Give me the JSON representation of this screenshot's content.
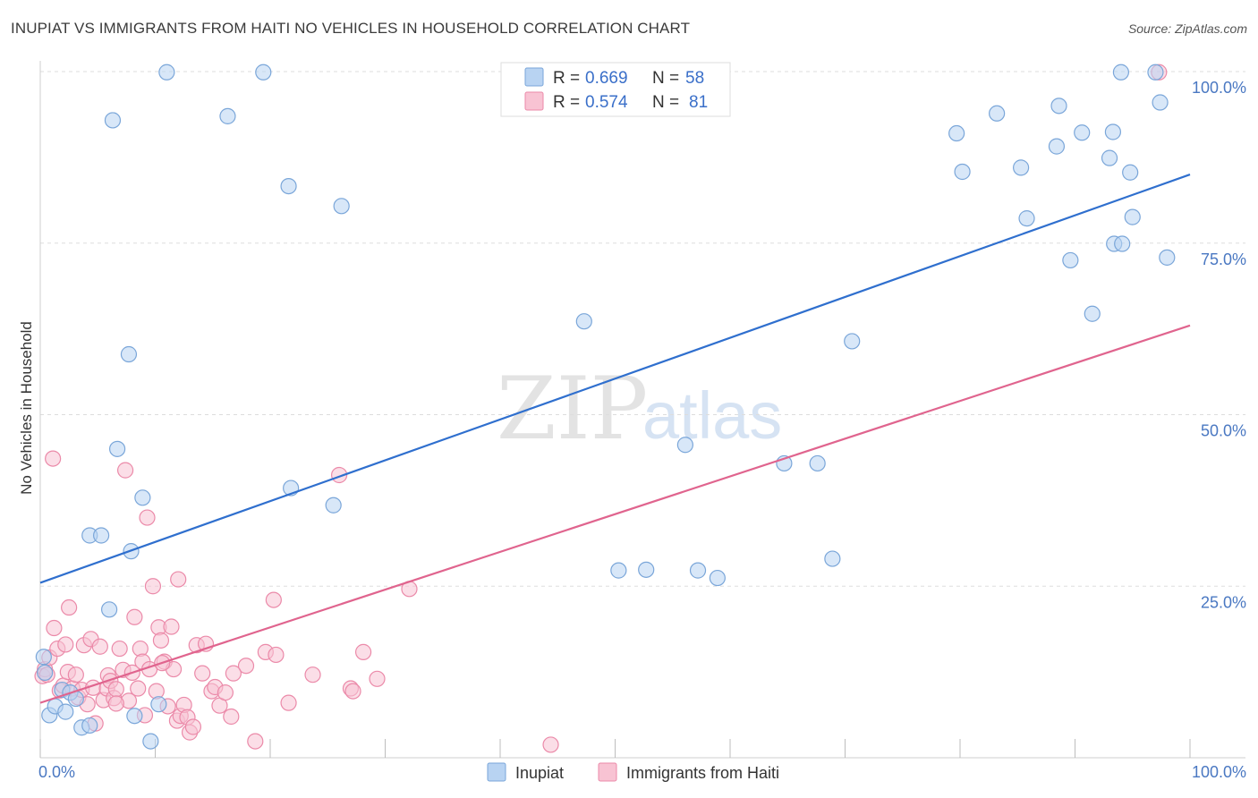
{
  "title": "INUPIAT VS IMMIGRANTS FROM HAITI NO VEHICLES IN HOUSEHOLD CORRELATION CHART",
  "source": "Source: ZipAtlas.com",
  "watermark": {
    "zip": "ZIP",
    "atlas": "atlas"
  },
  "colors": {
    "blue_fill": "#b8d3f2",
    "blue_stroke": "#7aa6d9",
    "blue_line": "#2f6fce",
    "pink_fill": "#f8c3d3",
    "pink_stroke": "#eb8aa9",
    "pink_line": "#e0648e",
    "tick_text": "#4a78c2",
    "grid": "#dddddd"
  },
  "chart_data": {
    "type": "scatter",
    "title": "INUPIAT VS IMMIGRANTS FROM HAITI NO VEHICLES IN HOUSEHOLD CORRELATION CHART",
    "xlabel": "",
    "ylabel": "No Vehicles in Household",
    "xlim": [
      0,
      100
    ],
    "ylim": [
      0,
      100
    ],
    "x_tick_labels": {
      "min": "0.0%",
      "max": "100.0%"
    },
    "y_tick_labels": [
      "25.0%",
      "50.0%",
      "75.0%",
      "100.0%"
    ],
    "y_tick_values": [
      25,
      50,
      75,
      100
    ],
    "legend_stats": [
      {
        "r_label": "R =",
        "r_value": "0.669",
        "n_label": "N =",
        "n_value": "58"
      },
      {
        "r_label": "R =",
        "r_value": "0.574",
        "n_label": "N =",
        "n_value": "81"
      }
    ],
    "series": [
      {
        "name": "Inupiat",
        "trend": {
          "x1": 0,
          "y1": 25.5,
          "x2": 100,
          "y2": 85
        },
        "points": [
          [
            0.3,
            14.7
          ],
          [
            0.4,
            12.4
          ],
          [
            0.8,
            6.2
          ],
          [
            1.3,
            7.5
          ],
          [
            1.9,
            9.9
          ],
          [
            2.2,
            6.7
          ],
          [
            2.6,
            9.5
          ],
          [
            3.1,
            8.6
          ],
          [
            3.6,
            4.4
          ],
          [
            4.3,
            4.7
          ],
          [
            4.3,
            32.4
          ],
          [
            5.3,
            32.4
          ],
          [
            6.0,
            21.6
          ],
          [
            6.3,
            92.9
          ],
          [
            6.7,
            45.0
          ],
          [
            7.7,
            58.8
          ],
          [
            7.9,
            30.1
          ],
          [
            8.2,
            6.1
          ],
          [
            8.9,
            37.9
          ],
          [
            9.6,
            2.4
          ],
          [
            10.3,
            7.8
          ],
          [
            11.0,
            99.9
          ],
          [
            16.3,
            93.5
          ],
          [
            19.4,
            99.9
          ],
          [
            21.6,
            83.3
          ],
          [
            21.8,
            39.3
          ],
          [
            25.5,
            36.8
          ],
          [
            26.2,
            80.4
          ],
          [
            47.3,
            63.6
          ],
          [
            50.3,
            27.3
          ],
          [
            52.7,
            27.4
          ],
          [
            56.1,
            45.6
          ],
          [
            57.2,
            27.3
          ],
          [
            58.9,
            26.2
          ],
          [
            64.7,
            42.9
          ],
          [
            67.6,
            42.9
          ],
          [
            68.9,
            29.0
          ],
          [
            70.6,
            60.7
          ],
          [
            79.7,
            91.0
          ],
          [
            80.2,
            85.4
          ],
          [
            83.2,
            93.9
          ],
          [
            85.3,
            86.0
          ],
          [
            85.8,
            78.6
          ],
          [
            88.4,
            89.1
          ],
          [
            88.6,
            95.0
          ],
          [
            89.6,
            72.5
          ],
          [
            90.6,
            91.1
          ],
          [
            91.5,
            64.7
          ],
          [
            93.0,
            87.4
          ],
          [
            93.3,
            91.2
          ],
          [
            93.4,
            74.9
          ],
          [
            94.0,
            99.9
          ],
          [
            94.1,
            74.9
          ],
          [
            94.8,
            85.3
          ],
          [
            95.0,
            78.8
          ],
          [
            97.0,
            99.9
          ],
          [
            97.4,
            95.5
          ],
          [
            98.0,
            72.9
          ]
        ]
      },
      {
        "name": "Immigrants from Haiti",
        "trend": {
          "x1": 0,
          "y1": 8,
          "x2": 100,
          "y2": 63
        },
        "points": [
          [
            0.2,
            11.9
          ],
          [
            0.4,
            12.9
          ],
          [
            0.6,
            12.1
          ],
          [
            0.8,
            14.6
          ],
          [
            1.1,
            43.6
          ],
          [
            1.2,
            18.9
          ],
          [
            1.5,
            15.9
          ],
          [
            1.7,
            9.8
          ],
          [
            2.0,
            10.5
          ],
          [
            2.4,
            12.5
          ],
          [
            2.5,
            21.9
          ],
          [
            2.8,
            10.1
          ],
          [
            3.1,
            12.1
          ],
          [
            3.3,
            8.8
          ],
          [
            3.6,
            9.9
          ],
          [
            3.8,
            16.4
          ],
          [
            4.1,
            7.8
          ],
          [
            4.4,
            17.3
          ],
          [
            4.6,
            10.2
          ],
          [
            4.8,
            5.0
          ],
          [
            5.2,
            16.2
          ],
          [
            5.5,
            8.4
          ],
          [
            5.8,
            10.1
          ],
          [
            5.9,
            12.0
          ],
          [
            6.1,
            11.2
          ],
          [
            6.4,
            8.7
          ],
          [
            6.6,
            10.0
          ],
          [
            6.9,
            15.9
          ],
          [
            7.2,
            12.8
          ],
          [
            7.4,
            41.9
          ],
          [
            7.7,
            8.3
          ],
          [
            8.0,
            12.4
          ],
          [
            8.2,
            20.5
          ],
          [
            8.5,
            10.1
          ],
          [
            8.7,
            15.9
          ],
          [
            8.9,
            14.0
          ],
          [
            9.1,
            6.2
          ],
          [
            9.3,
            35.0
          ],
          [
            9.5,
            12.9
          ],
          [
            9.8,
            25.0
          ],
          [
            10.1,
            9.7
          ],
          [
            10.3,
            19.0
          ],
          [
            10.5,
            17.1
          ],
          [
            10.8,
            14.0
          ],
          [
            11.1,
            7.5
          ],
          [
            11.4,
            19.1
          ],
          [
            11.6,
            12.9
          ],
          [
            11.9,
            5.4
          ],
          [
            12.0,
            26.0
          ],
          [
            12.2,
            6.1
          ],
          [
            12.5,
            7.7
          ],
          [
            12.8,
            5.9
          ],
          [
            13.0,
            3.7
          ],
          [
            13.3,
            4.5
          ],
          [
            13.6,
            16.4
          ],
          [
            14.1,
            12.3
          ],
          [
            14.4,
            16.6
          ],
          [
            14.9,
            9.7
          ],
          [
            15.2,
            10.3
          ],
          [
            15.6,
            7.6
          ],
          [
            16.1,
            9.5
          ],
          [
            16.6,
            6.0
          ],
          [
            17.9,
            13.4
          ],
          [
            18.7,
            2.4
          ],
          [
            19.6,
            15.4
          ],
          [
            20.3,
            23.0
          ],
          [
            20.5,
            15.0
          ],
          [
            21.6,
            8.0
          ],
          [
            23.7,
            12.1
          ],
          [
            26.0,
            41.2
          ],
          [
            27.0,
            10.1
          ],
          [
            27.2,
            9.7
          ],
          [
            28.1,
            15.4
          ],
          [
            29.3,
            11.5
          ],
          [
            32.1,
            24.6
          ],
          [
            44.4,
            1.9
          ],
          [
            97.3,
            99.9
          ],
          [
            2.2,
            16.5
          ],
          [
            6.6,
            7.9
          ],
          [
            10.6,
            13.8
          ],
          [
            16.8,
            12.3
          ]
        ]
      }
    ]
  }
}
